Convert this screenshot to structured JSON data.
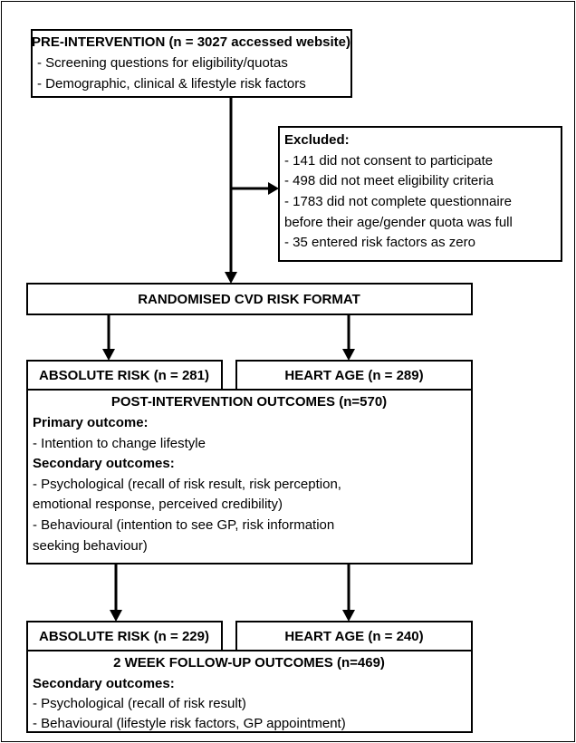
{
  "nodes": [
    {
      "title": "PRE-INTERVENTION (n = 3027 accessed website)",
      "lines": [
        "- Screening questions for eligibility/quotas",
        "- Demographic, clinical & lifestyle risk factors"
      ]
    },
    {
      "title": "Excluded:",
      "lines": [
        "- 141 did not consent to participate",
        "- 498 did not meet eligibility criteria",
        "- 1783 did not complete questionnaire",
        "before their age/gender quota was full",
        "- 35 entered risk factors as zero"
      ]
    },
    {
      "title": "RANDOMISED CVD RISK FORMAT"
    },
    {
      "title": "ABSOLUTE RISK (n = 281)"
    },
    {
      "title": "HEART AGE (n = 289)"
    },
    {
      "title": "POST-INTERVENTION OUTCOMES (n=570)",
      "sections": [
        {
          "heading": "Primary outcome:",
          "lines": [
            "- Intention to change lifestyle"
          ]
        },
        {
          "heading": "Secondary outcomes:",
          "lines": [
            "- Psychological (recall of risk result, risk perception,",
            "emotional response, perceived credibility)",
            "- Behavioural (intention to see GP, risk information",
            "seeking behaviour)"
          ]
        }
      ]
    },
    {
      "title": "ABSOLUTE RISK (n = 229)"
    },
    {
      "title": "HEART AGE (n = 240)"
    },
    {
      "title": "2 WEEK FOLLOW-UP OUTCOMES (n=469)",
      "sections": [
        {
          "heading": "Secondary outcomes:",
          "lines": [
            "- Psychological (recall of risk result)",
            "- Behavioural (lifestyle risk factors, GP appointment)"
          ]
        }
      ]
    }
  ]
}
